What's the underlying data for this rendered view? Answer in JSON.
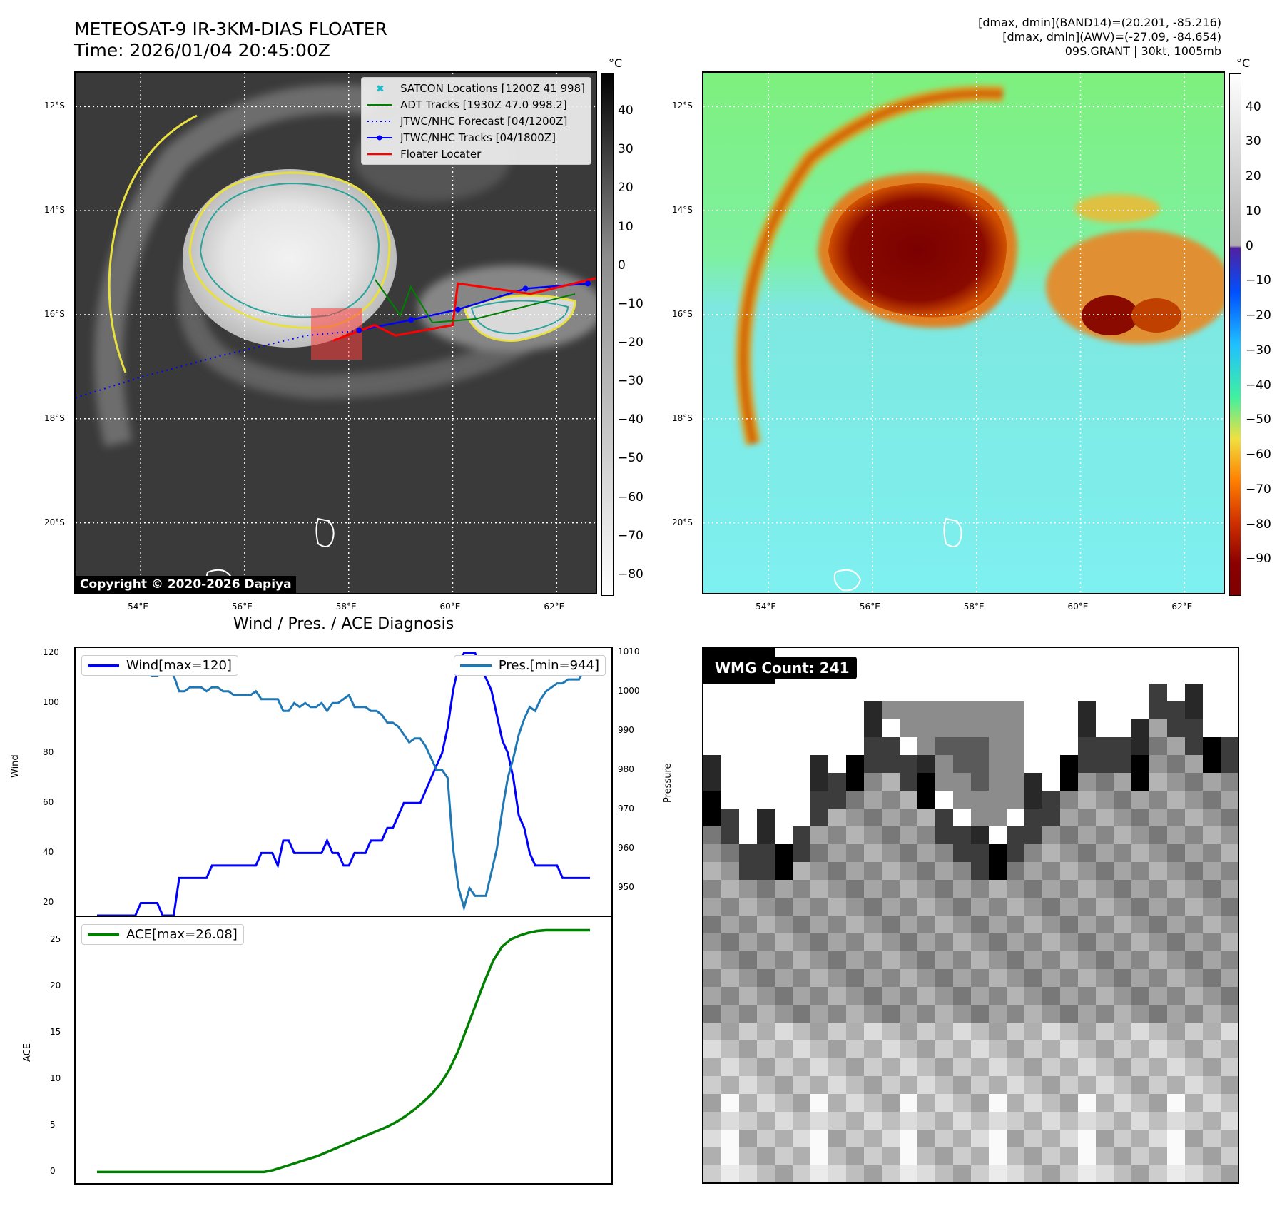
{
  "header": {
    "title_line1": "METEOSAT-9 IR-3KM-DIAS FLOATER",
    "title_line2": "Time: 2026/01/04 20:45:00Z",
    "stats_line1": "[dmax, dmin](BAND14)=(20.201, -85.216)",
    "stats_line2": "[dmax, dmin](AWV)=(-27.09, -84.654)",
    "stats_line3": "09S.GRANT | 30kt, 1005mb"
  },
  "map": {
    "lat_labels": [
      "12°S",
      "14°S",
      "16°S",
      "18°S",
      "20°S"
    ],
    "lon_labels": [
      "54°E",
      "56°E",
      "58°E",
      "60°E",
      "62°E"
    ],
    "lat_values": [
      -12,
      -14,
      -16,
      -18,
      -20
    ],
    "lon_values": [
      54,
      56,
      58,
      60,
      62
    ],
    "lon_range": [
      52.75,
      62.75
    ],
    "lat_range": [
      -21.35,
      -11.35
    ],
    "legend": [
      {
        "label": "SATCON Locations [1200Z 41 998]",
        "color": "#17becf",
        "style": "x"
      },
      {
        "label": "ADT Tracks [1930Z 47.0 998.2]",
        "color": "#008000",
        "style": "line"
      },
      {
        "label": "JTWC/NHC Forecast [04/1200Z]",
        "color": "#0000ff",
        "style": "dotted"
      },
      {
        "label": "JTWC/NHC Tracks [04/1800Z]",
        "color": "#0000ff",
        "style": "line-dot"
      },
      {
        "label": "Floater Locater",
        "color": "#ff0000",
        "style": "line"
      }
    ],
    "copyright": "Copyright © 2020-2026 Dapiya",
    "track_jtwc": [
      [
        58.2,
        -16.3
      ],
      [
        59.2,
        -16.1
      ],
      [
        60.1,
        -15.9
      ],
      [
        61.4,
        -15.5
      ],
      [
        62.6,
        -15.4
      ]
    ],
    "forecast": [
      [
        52.75,
        -17.6
      ],
      [
        54.0,
        -17.2
      ],
      [
        55.5,
        -16.8
      ],
      [
        57.2,
        -16.4
      ],
      [
        58.3,
        -16.3
      ]
    ],
    "floater": [
      [
        57.7,
        -16.5
      ],
      [
        58.5,
        -16.2
      ],
      [
        58.9,
        -16.4
      ],
      [
        60.0,
        -16.2
      ],
      [
        60.1,
        -15.4
      ],
      [
        61.5,
        -15.6
      ],
      [
        62.75,
        -15.3
      ]
    ]
  },
  "colorbar_ir": {
    "unit": "°C",
    "ticks": [
      "40",
      "30",
      "20",
      "10",
      "0",
      "−10",
      "−20",
      "−30",
      "−40",
      "−50",
      "−60",
      "−70",
      "−80"
    ],
    "range": [
      -85,
      50
    ]
  },
  "colorbar_awv": {
    "unit": "°C",
    "ticks": [
      "40",
      "30",
      "20",
      "10",
      "0",
      "−10",
      "−20",
      "−30",
      "−40",
      "−50",
      "−60",
      "−70",
      "−80",
      "−90"
    ],
    "range": [
      -100,
      50
    ]
  },
  "diagnosis": {
    "title": "Wind / Pres. / ACE Diagnosis",
    "wind_label": "Wind",
    "pressure_label": "Pressure",
    "ace_label": "ACE",
    "wind_legend": "Wind[max=120]",
    "pres_legend": "Pres.[min=944]",
    "ace_legend": "ACE[max=26.08]",
    "wind_ticks": [
      "120",
      "100",
      "80",
      "60",
      "40",
      "20"
    ],
    "pres_ticks": [
      "1010",
      "1000",
      "990",
      "980",
      "970",
      "960",
      "950"
    ],
    "ace_ticks": [
      "25",
      "20",
      "15",
      "10",
      "5",
      "0"
    ],
    "wind_color": "#0000ff",
    "pres_color": "#1f77b4",
    "ace_color": "#008000"
  },
  "chart_data": [
    {
      "type": "line",
      "title": "Wind / Pres. / ACE Diagnosis",
      "ylabel": "Wind",
      "ylim": [
        15,
        122
      ],
      "series": [
        {
          "name": "Wind[max=120]",
          "values": [
            15,
            15,
            15,
            15,
            15,
            15,
            15,
            15,
            20,
            20,
            20,
            20,
            15,
            15,
            15,
            30,
            30,
            30,
            30,
            30,
            30,
            35,
            35,
            35,
            35,
            35,
            35,
            35,
            35,
            35,
            40,
            40,
            40,
            35,
            45,
            45,
            40,
            40,
            40,
            40,
            40,
            40,
            45,
            40,
            40,
            35,
            35,
            40,
            40,
            40,
            45,
            45,
            45,
            50,
            50,
            55,
            60,
            60,
            60,
            60,
            65,
            70,
            75,
            80,
            90,
            105,
            115,
            120,
            120,
            120,
            115,
            110,
            105,
            95,
            85,
            80,
            70,
            55,
            50,
            40,
            35,
            35,
            35,
            35,
            35,
            30,
            30,
            30,
            30,
            30,
            30
          ]
        }
      ]
    },
    {
      "type": "line",
      "ylabel": "Pressure",
      "ylim": [
        943,
        1011
      ],
      "series": [
        {
          "name": "Pres.[min=944]",
          "values": [
            1008,
            1008,
            1007,
            1006,
            1006,
            1006,
            1006,
            1005,
            1005,
            1005,
            1004,
            1004,
            1005,
            1005,
            1004,
            1000,
            1000,
            1001,
            1001,
            1001,
            1000,
            1001,
            1001,
            1000,
            1000,
            999,
            999,
            999,
            999,
            1000,
            998,
            998,
            998,
            998,
            995,
            995,
            997,
            996,
            997,
            996,
            996,
            997,
            995,
            997,
            997,
            998,
            999,
            996,
            996,
            996,
            995,
            995,
            994,
            992,
            992,
            991,
            989,
            987,
            988,
            988,
            986,
            983,
            980,
            980,
            978,
            960,
            950,
            945,
            950,
            948,
            948,
            948,
            954,
            960,
            970,
            978,
            983,
            989,
            993,
            996,
            995,
            998,
            1000,
            1001,
            1002,
            1002,
            1003,
            1003,
            1003,
            1006,
            1008
          ]
        }
      ]
    },
    {
      "type": "line",
      "ylabel": "ACE",
      "ylim": [
        -1.2,
        27.5
      ],
      "series": [
        {
          "name": "ACE[max=26.08]",
          "values": [
            0,
            0,
            0,
            0,
            0,
            0,
            0,
            0,
            0,
            0,
            0,
            0,
            0,
            0,
            0,
            0,
            0,
            0,
            0,
            0,
            0.2,
            0.5,
            0.8,
            1.1,
            1.4,
            1.7,
            2.1,
            2.5,
            2.9,
            3.3,
            3.7,
            4.1,
            4.5,
            4.9,
            5.4,
            6.0,
            6.7,
            7.5,
            8.4,
            9.5,
            11.0,
            13.0,
            15.5,
            18.0,
            20.5,
            22.8,
            24.3,
            25.1,
            25.5,
            25.8,
            26.0,
            26.08,
            26.08,
            26.08,
            26.08,
            26.08,
            26.08
          ]
        }
      ]
    }
  ],
  "wmg": {
    "label": "WMG Count: 241"
  }
}
